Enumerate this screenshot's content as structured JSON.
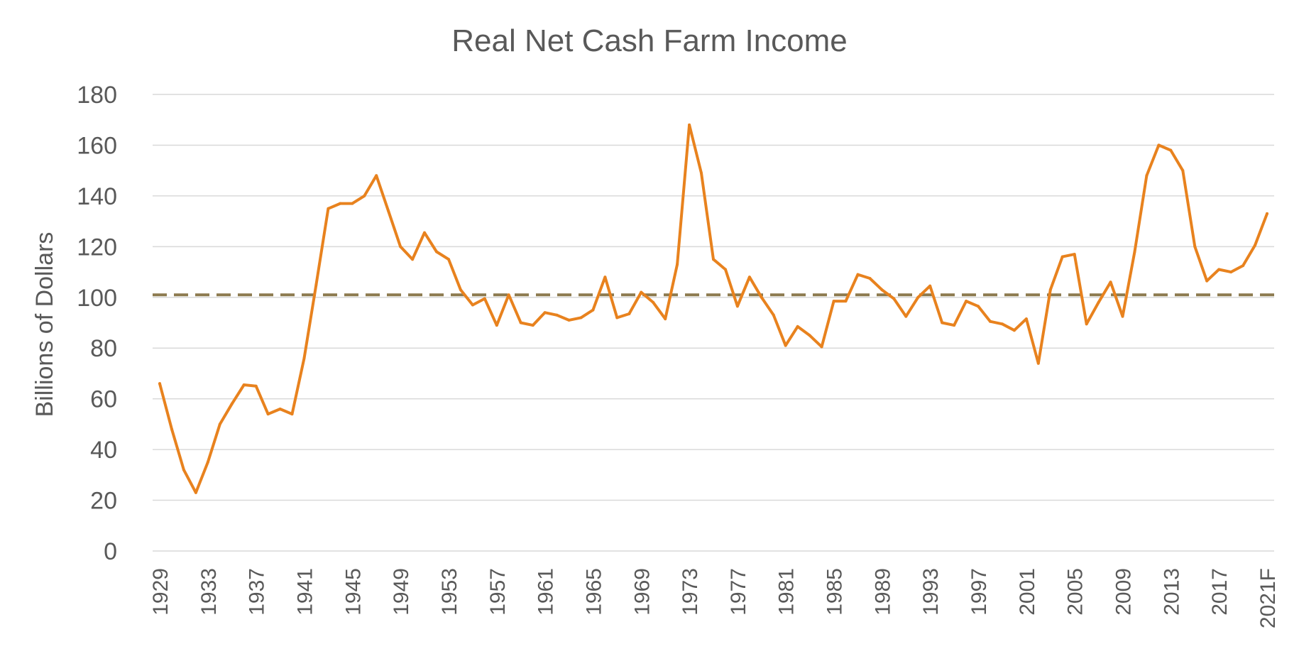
{
  "chart_data": {
    "type": "line",
    "title": "Real Net Cash Farm Income",
    "xlabel": "",
    "ylabel": "Billions of Dollars",
    "ylim": [
      0,
      180
    ],
    "yticks": [
      0,
      20,
      40,
      60,
      80,
      100,
      120,
      140,
      160,
      180
    ],
    "grid": true,
    "legend": "none",
    "x_tick_labels": [
      "1929",
      "1933",
      "1937",
      "1941",
      "1945",
      "1949",
      "1953",
      "1957",
      "1961",
      "1965",
      "1969",
      "1973",
      "1977",
      "1981",
      "1985",
      "1989",
      "1993",
      "1997",
      "2001",
      "2005",
      "2009",
      "2013",
      "2017",
      "2021F"
    ],
    "x": [
      "1929",
      "1930",
      "1931",
      "1932",
      "1933",
      "1934",
      "1935",
      "1936",
      "1937",
      "1938",
      "1939",
      "1940",
      "1941",
      "1942",
      "1943",
      "1944",
      "1945",
      "1946",
      "1947",
      "1948",
      "1949",
      "1950",
      "1951",
      "1952",
      "1953",
      "1954",
      "1955",
      "1956",
      "1957",
      "1958",
      "1959",
      "1960",
      "1961",
      "1962",
      "1963",
      "1964",
      "1965",
      "1966",
      "1967",
      "1968",
      "1969",
      "1970",
      "1971",
      "1972",
      "1973",
      "1974",
      "1975",
      "1976",
      "1977",
      "1978",
      "1979",
      "1980",
      "1981",
      "1982",
      "1983",
      "1984",
      "1985",
      "1986",
      "1987",
      "1988",
      "1989",
      "1990",
      "1991",
      "1992",
      "1993",
      "1994",
      "1995",
      "1996",
      "1997",
      "1998",
      "1999",
      "2000",
      "2001",
      "2002",
      "2003",
      "2004",
      "2005",
      "2006",
      "2007",
      "2008",
      "2009",
      "2010",
      "2011",
      "2012",
      "2013",
      "2014",
      "2015",
      "2016",
      "2017",
      "2018",
      "2019",
      "2020",
      "2021F"
    ],
    "series": [
      {
        "color": "#E8821E",
        "values": [
          66,
          48,
          32,
          23,
          35,
          50,
          58,
          65.5,
          65,
          54,
          56,
          54,
          76,
          105,
          135,
          137,
          137,
          140,
          148,
          134,
          120,
          115,
          125.5,
          118,
          115,
          103,
          97,
          99.5,
          89,
          101,
          90,
          89,
          94,
          93,
          91,
          92,
          95,
          108,
          92,
          93.5,
          102,
          98,
          91.5,
          113,
          168,
          149,
          115,
          111,
          96.5,
          108,
          100,
          93,
          81,
          88.5,
          85,
          80.5,
          98.5,
          98.5,
          109,
          107.5,
          103,
          99.5,
          92.5,
          100,
          104.5,
          90,
          89,
          98.5,
          96.5,
          90.5,
          89.5,
          87,
          91.5,
          74,
          103,
          116,
          117,
          89.5,
          98,
          106,
          92.5,
          118,
          148,
          160,
          158,
          150,
          120,
          106.5,
          111,
          110,
          112.5,
          120.5,
          133
        ]
      }
    ],
    "reference_lines": [
      {
        "y": 101,
        "color": "#8C7A4F",
        "style": "dashed"
      }
    ]
  }
}
